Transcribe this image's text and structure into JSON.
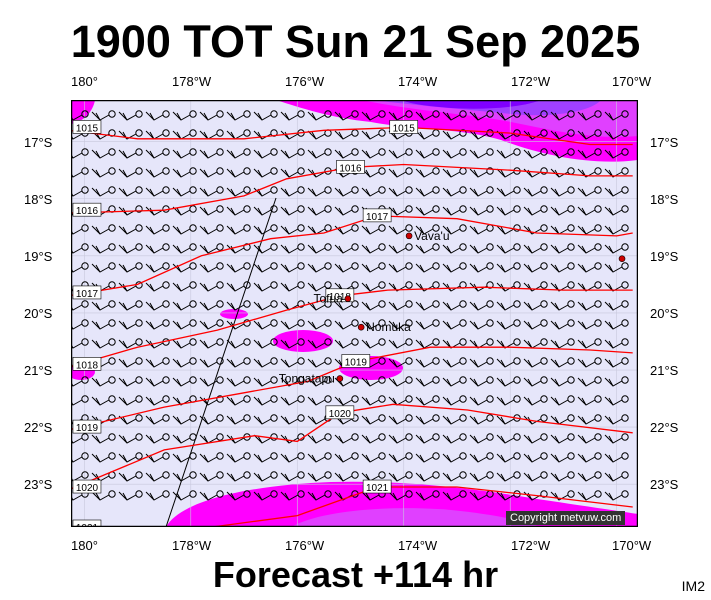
{
  "title": "1900 TOT Sun 21 Sep 2025",
  "footer": "Forecast +114 hr",
  "image_tag": "IM2",
  "copyright": "Copyright metvuw.com",
  "lon_labels": [
    "180°",
    "178°W",
    "176°W",
    "174°W",
    "172°W",
    "170°W"
  ],
  "lat_labels": [
    "17°S",
    "18°S",
    "19°S",
    "20°S",
    "21°S",
    "22°S",
    "23°S"
  ],
  "places": [
    {
      "name": "Vava'u",
      "lon": -173.9,
      "lat": -18.65
    },
    {
      "name": "Tofua",
      "lon": -175.05,
      "lat": -19.75
    },
    {
      "name": "Nomuka",
      "lon": -174.8,
      "lat": -20.25
    },
    {
      "name": "Tongatapu",
      "lon": -175.2,
      "lat": -21.15
    },
    {
      "name": "",
      "lon": -169.9,
      "lat": -19.05
    }
  ],
  "isobars": [
    {
      "label": "1015",
      "points": [
        [
          -180.3,
          -16.8
        ],
        [
          -179,
          -16.95
        ],
        [
          -177,
          -16.95
        ],
        [
          -175.5,
          -16.8
        ],
        [
          -174,
          -16.75
        ],
        [
          -172,
          -16.85
        ],
        [
          -170.5,
          -17.05
        ],
        [
          -169.7,
          -17.05
        ]
      ]
    },
    {
      "label": "1016",
      "points": [
        [
          -180.3,
          -18.25
        ],
        [
          -178.5,
          -18.2
        ],
        [
          -177,
          -17.95
        ],
        [
          -176.2,
          -17.65
        ],
        [
          -175,
          -17.45
        ],
        [
          -174,
          -17.4
        ],
        [
          -172,
          -17.5
        ],
        [
          -170.5,
          -17.6
        ],
        [
          -169.7,
          -17.6
        ]
      ]
    },
    {
      "label": "1017",
      "points": [
        [
          -180.3,
          -19.7
        ],
        [
          -179,
          -19.5
        ],
        [
          -177.8,
          -19.0
        ],
        [
          -176.5,
          -18.7
        ],
        [
          -175.5,
          -18.6
        ],
        [
          -174.5,
          -18.3
        ],
        [
          -173,
          -18.35
        ],
        [
          -171.5,
          -18.6
        ],
        [
          -170,
          -18.65
        ],
        [
          -169.7,
          -18.6
        ]
      ]
    },
    {
      "label": "1018",
      "points": [
        [
          -180.3,
          -20.95
        ],
        [
          -179,
          -20.6
        ],
        [
          -177.5,
          -20.3
        ],
        [
          -176.2,
          -19.95
        ],
        [
          -175.2,
          -19.7
        ],
        [
          -174.3,
          -19.6
        ],
        [
          -172.5,
          -19.55
        ],
        [
          -171,
          -19.6
        ],
        [
          -169.7,
          -19.6
        ]
      ]
    },
    {
      "label": "1019",
      "points": [
        [
          -180.3,
          -22.05
        ],
        [
          -178.5,
          -21.65
        ],
        [
          -177,
          -21.4
        ],
        [
          -175.8,
          -21.2
        ],
        [
          -174.9,
          -20.85
        ],
        [
          -173.5,
          -20.6
        ],
        [
          -172,
          -20.6
        ],
        [
          -170.5,
          -20.65
        ],
        [
          -169.7,
          -20.7
        ]
      ]
    },
    {
      "label": "1020",
      "points": [
        [
          -180.3,
          -23.1
        ],
        [
          -178.5,
          -22.4
        ],
        [
          -176.8,
          -22.15
        ],
        [
          -176,
          -22.25
        ],
        [
          -175.2,
          -21.75
        ],
        [
          -174.2,
          -21.6
        ],
        [
          -172.8,
          -21.7
        ],
        [
          -171.5,
          -21.9
        ],
        [
          -169.7,
          -22.1
        ]
      ]
    },
    {
      "label": "1021",
      "points": [
        [
          -180.3,
          -23.8
        ],
        [
          -178,
          -23.8
        ],
        [
          -176,
          -23.55
        ],
        [
          -174.5,
          -23.05
        ],
        [
          -173,
          -23.05
        ],
        [
          -171.5,
          -23.2
        ],
        [
          -169.7,
          -23.4
        ]
      ]
    }
  ],
  "colors": {
    "ocean": "#e6e6fa",
    "isobar": "#ff0000",
    "wind_band_1": "#ff00ff",
    "wind_band_2": "#e040ff",
    "wind_band_3": "#a040ff",
    "wind_band_4": "#8000ff",
    "barb": "#000000",
    "place_dot": "#cc0000"
  }
}
